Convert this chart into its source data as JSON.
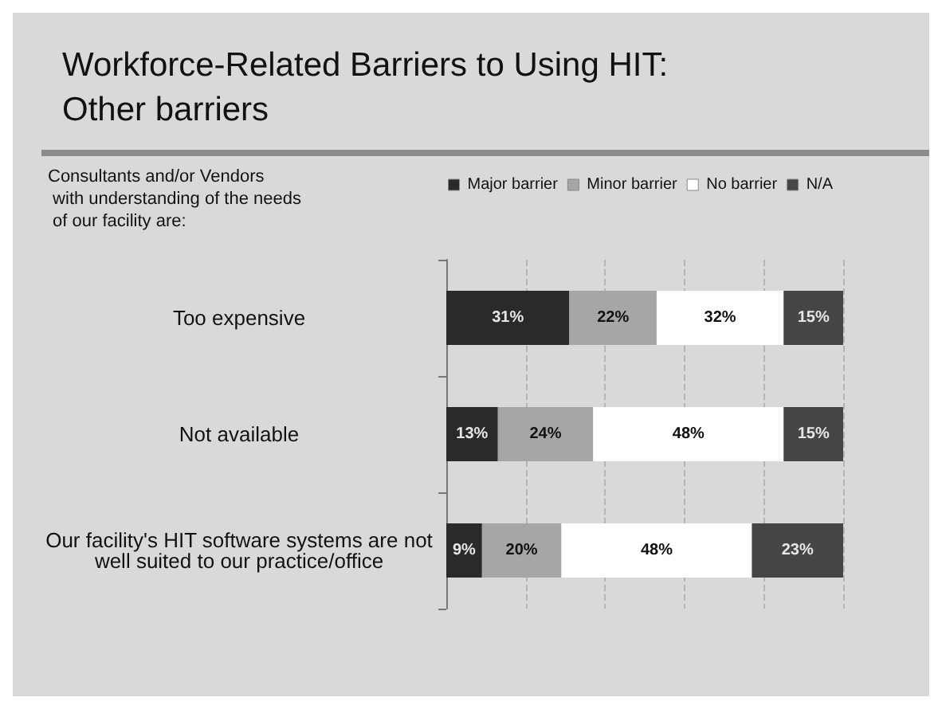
{
  "chart_data": {
    "type": "bar",
    "orientation": "horizontal",
    "stacked": true,
    "title": "Workforce-Related Barriers to Using HIT:\nOther barriers",
    "subtitle": "Consultants and/or Vendors\n with understanding of the needs\n of our facility are:",
    "categories": [
      "Too expensive",
      "Not available",
      "Our facility's HIT software systems are not\nwell suited to our practice/office"
    ],
    "series": [
      {
        "name": "Major barrier",
        "color": "#2a2a2a",
        "values": [
          31,
          13,
          9
        ],
        "value_labels": [
          "31%",
          "13%",
          "9%"
        ]
      },
      {
        "name": "Minor barrier",
        "color": "#a6a6a6",
        "values": [
          22,
          24,
          20
        ],
        "value_labels": [
          "22%",
          "24%",
          "20%"
        ]
      },
      {
        "name": "No barrier",
        "color": "#ffffff",
        "values": [
          32,
          48,
          48
        ],
        "value_labels": [
          "32%",
          "48%",
          "48%"
        ]
      },
      {
        "name": "N/A",
        "color": "#454545",
        "values": [
          15,
          15,
          23
        ],
        "value_labels": [
          "15%",
          "15%",
          "23%"
        ]
      }
    ],
    "xlim": [
      0,
      100
    ],
    "xticks": [
      {
        "value": 0,
        "label": null
      },
      {
        "value": 20,
        "label": null
      },
      {
        "value": 40,
        "label": null
      },
      {
        "value": 60,
        "label": null
      },
      {
        "value": 80,
        "label": null
      },
      {
        "value": 100,
        "label": null
      }
    ],
    "grid": "x",
    "legend": "top",
    "tick_labels": "y"
  }
}
